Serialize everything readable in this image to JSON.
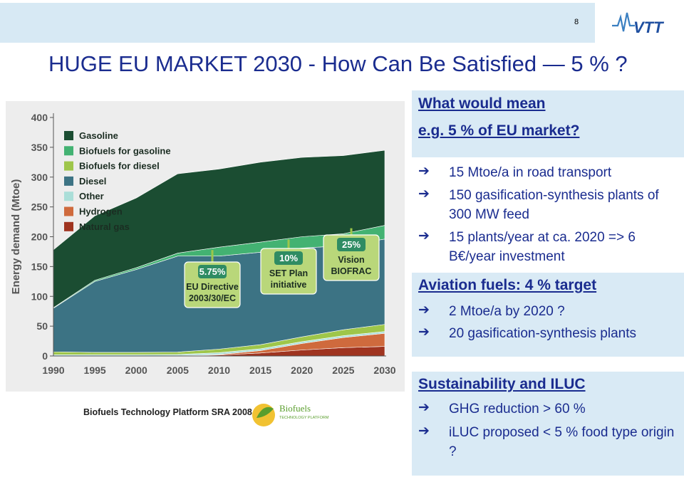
{
  "header": {
    "page_number": "8",
    "logo_text": "VTT"
  },
  "title": "HUGE EU MARKET 2030 -  How Can Be Satisfied —  5 % ?",
  "source_credit": "Biofuels Technology Platform SRA 2008",
  "biofuels_logo": {
    "line1": "Biofuels",
    "line2": "TECHNOLOGY PLATFORM"
  },
  "right": {
    "box1_heading_line1": "What would mean",
    "box1_heading_line2": "e.g. 5 % of EU market?",
    "bullets1": [
      "15 Mtoe/a in road transport",
      "150 gasification-synthesis plants of 300 MW feed",
      "15 plants/year at ca. 2020 => 6 B€/year investment"
    ],
    "box2_heading": "Aviation fuels: 4 % target",
    "bullets2": [
      "2 Mtoe/a by 2020 ?",
      "20 gasification-synthesis plants"
    ],
    "box3_heading": "Sustainability and ILUC",
    "bullets3": [
      "GHG reduction > 60 %",
      "iLUC proposed < 5 % food type origin ?"
    ],
    "arrow_glyph": "➔"
  },
  "colors": {
    "title": "#1a2c8f",
    "gasoline": "#1b4d32",
    "biofuels_for_gasoline": "#43b272",
    "biofuels_for_diesel": "#9ec64a",
    "diesel": "#3c7384",
    "other": "#aaded8",
    "hydrogen": "#cf6a3d",
    "natural_gas": "#9f3420"
  },
  "chart_data": {
    "type": "area",
    "stacked": true,
    "xlabel": "",
    "ylabel": "Energy demand (Mtoe)",
    "x": [
      1990,
      1995,
      2000,
      2005,
      2010,
      2015,
      2020,
      2025,
      2030
    ],
    "x_ticks": [
      "1990",
      "1995",
      "2000",
      "2005",
      "2010",
      "2015",
      "2020",
      "2025",
      "2030"
    ],
    "ylim": [
      0,
      400
    ],
    "y_ticks": [
      0,
      50,
      100,
      150,
      200,
      250,
      300,
      350,
      400
    ],
    "grid": false,
    "legend_position": "top-left",
    "series": [
      {
        "name": "Natural gas",
        "color": "#9f3420",
        "values": [
          0,
          0,
          0,
          0.5,
          1.5,
          5,
          10,
          14,
          16
        ]
      },
      {
        "name": "Hydrogen",
        "color": "#cf6a3d",
        "values": [
          0,
          0,
          0,
          0,
          1,
          4,
          11,
          17,
          22
        ]
      },
      {
        "name": "Other",
        "color": "#aaded8",
        "values": [
          2,
          2,
          2,
          2,
          3,
          3,
          3,
          3,
          3
        ]
      },
      {
        "name": "Biofuels for diesel",
        "color": "#9ec64a",
        "values": [
          5,
          4,
          4,
          4,
          6,
          7,
          8,
          10,
          12
        ]
      },
      {
        "name": "Diesel",
        "color": "#3c7384",
        "values": [
          73,
          119,
          139,
          161,
          156,
          155,
          149,
          141,
          143
        ]
      },
      {
        "name": "Biofuels for gasoline",
        "color": "#43b272",
        "values": [
          1,
          2,
          3,
          5,
          15,
          17,
          19,
          20,
          23
        ]
      },
      {
        "name": "Gasoline",
        "color": "#1b4d32",
        "values": [
          97,
          108,
          117,
          133,
          131,
          134,
          133,
          131,
          126
        ]
      }
    ],
    "legend": [
      {
        "name": "Gasoline",
        "color": "#1b4d32"
      },
      {
        "name": "Biofuels for gasoline",
        "color": "#43b272"
      },
      {
        "name": "Biofuels for diesel",
        "color": "#9ec64a"
      },
      {
        "name": "Diesel",
        "color": "#3c7384"
      },
      {
        "name": "Other",
        "color": "#aaded8"
      },
      {
        "name": "Hydrogen",
        "color": "#cf6a3d"
      },
      {
        "name": "Natural gas",
        "color": "#9f3420"
      }
    ],
    "annotations": [
      {
        "lines": [
          "5.75%",
          "EU Directive",
          "2003/30/EC"
        ],
        "x": 2010
      },
      {
        "lines": [
          "10%",
          "SET Plan",
          "initiative"
        ],
        "x": 2020
      },
      {
        "lines": [
          "25%",
          "Vision",
          "BIOFRAC"
        ],
        "x": 2030
      }
    ]
  }
}
